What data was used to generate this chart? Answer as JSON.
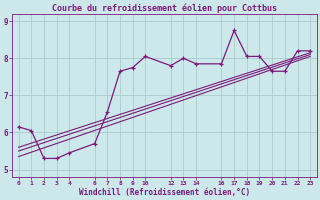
{
  "title": "Courbe du refroidissement éolien pour Cottbus",
  "xlabel": "Windchill (Refroidissement éolien,°C)",
  "bg_color": "#cce8ea",
  "line_color": "#7b1a7b",
  "grid_color": "#aacccc",
  "xlim": [
    -0.5,
    23.5
  ],
  "ylim": [
    4.8,
    9.2
  ],
  "xticks": [
    0,
    1,
    2,
    3,
    4,
    6,
    7,
    8,
    9,
    10,
    12,
    13,
    14,
    16,
    17,
    18,
    19,
    20,
    21,
    22,
    23
  ],
  "yticks": [
    5,
    6,
    7,
    8,
    9
  ],
  "series1_x": [
    0,
    1,
    2,
    3,
    4,
    6,
    7,
    8,
    9,
    10,
    12,
    13,
    14,
    16,
    17,
    18,
    19,
    20,
    21,
    22,
    23
  ],
  "series1_y": [
    6.15,
    6.05,
    5.3,
    5.3,
    5.45,
    5.7,
    6.55,
    7.65,
    7.75,
    8.05,
    7.8,
    8.0,
    7.85,
    7.85,
    8.75,
    8.05,
    8.05,
    7.65,
    7.65,
    8.2,
    8.2
  ],
  "series2_x": [
    0,
    23
  ],
  "series2_y": [
    5.35,
    8.05
  ],
  "series3_x": [
    0,
    23
  ],
  "series3_y": [
    5.5,
    8.1
  ],
  "series4_x": [
    0,
    23
  ],
  "series4_y": [
    5.6,
    8.15
  ],
  "title_fontsize": 6,
  "xlabel_fontsize": 5.5,
  "xtick_fontsize": 4.5,
  "ytick_fontsize": 5.5
}
